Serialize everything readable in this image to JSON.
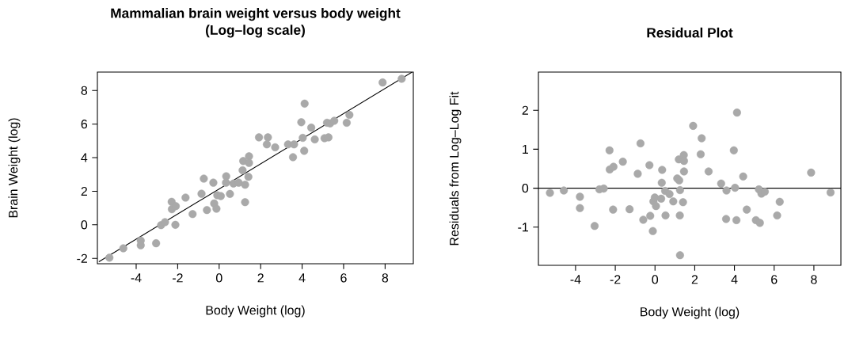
{
  "chart_data": [
    {
      "type": "scatter",
      "title": "Mammalian brain weight versus body weight",
      "subtitle": "(Log–log scale)",
      "xlabel": "Body Weight (log)",
      "ylabel": "Brain Weight (log)",
      "xlim": [
        -5.87,
        9.36
      ],
      "ylim": [
        -2.32,
        9.1
      ],
      "xticks": [
        -4,
        -2,
        0,
        2,
        4,
        6,
        8
      ],
      "yticks": [
        -2,
        0,
        2,
        4,
        6,
        8
      ],
      "series": [
        {
          "color": "#a9a9a9",
          "marker": "circle",
          "x": [
            -5.29,
            -4.62,
            -3.78,
            -3.78,
            -3.04,
            -2.8,
            -2.61,
            -2.11,
            -2.29,
            -2.28,
            -2.09,
            -1.62,
            -1.28,
            -0.85,
            -0.74,
            -0.59,
            -0.28,
            -0.24,
            -0.13,
            -0.09,
            0.08,
            0.34,
            0.33,
            0.52,
            0.69,
            0.94,
            1.13,
            1.16,
            1.25,
            1.25,
            1.41,
            1.44,
            1.44,
            1.92,
            2.35,
            2.3,
            2.7,
            3.32,
            3.61,
            3.56,
            3.96,
            4.03,
            4.12,
            4.1,
            4.44,
            4.61,
            5.08,
            5.27,
            5.2,
            5.35,
            5.55,
            6.15,
            6.28,
            7.88,
            8.8
          ],
          "values": [
            -1.96,
            -1.4,
            -0.94,
            -1.22,
            -1.1,
            -0.02,
            0.16,
            0.0,
            1.37,
            0.93,
            1.11,
            1.62,
            0.64,
            1.85,
            2.75,
            0.88,
            2.51,
            1.27,
            0.96,
            1.76,
            1.71,
            2.89,
            2.51,
            1.84,
            2.46,
            2.51,
            3.25,
            3.8,
            2.39,
            1.35,
            2.86,
            4.08,
            3.69,
            5.21,
            5.21,
            4.79,
            4.62,
            4.79,
            4.79,
            4.03,
            6.11,
            5.18,
            7.22,
            4.41,
            5.79,
            5.09,
            5.16,
            5.21,
            6.08,
            6.04,
            6.2,
            6.08,
            6.55,
            8.48,
            8.7
          ]
        },
        {
          "type": "line",
          "color": "#000000",
          "x": [
            -5.8,
            9.3
          ],
          "values": [
            -2.2,
            9.1
          ]
        }
      ]
    },
    {
      "type": "scatter",
      "title": "Residual Plot",
      "xlabel": "Body Weight (log)",
      "ylabel": "Residuals from Log–Log Fit",
      "xlim": [
        -5.87,
        9.36
      ],
      "ylim": [
        -1.98,
        2.98
      ],
      "xticks": [
        -4,
        -2,
        0,
        2,
        4,
        6,
        8
      ],
      "yticks": [
        -1,
        0,
        1,
        2
      ],
      "ref_lines": [
        {
          "axis": "y",
          "value": 0,
          "color": "#000000"
        }
      ],
      "series": [
        {
          "color": "#a9a9a9",
          "marker": "circle",
          "x": [
            -5.29,
            -4.59,
            -3.78,
            -3.78,
            -3.04,
            -2.8,
            -2.58,
            -2.29,
            -2.28,
            -2.09,
            -2.11,
            -1.62,
            -1.28,
            -0.87,
            -0.73,
            -0.59,
            -0.28,
            -0.24,
            -0.11,
            -0.08,
            -0.01,
            0.05,
            0.31,
            0.36,
            0.34,
            0.51,
            0.53,
            0.73,
            0.92,
            1.12,
            1.22,
            1.2,
            1.26,
            1.25,
            1.26,
            1.41,
            1.45,
            1.46,
            1.46,
            1.92,
            2.3,
            2.35,
            2.7,
            3.33,
            3.6,
            3.58,
            3.97,
            4.03,
            4.1,
            4.13,
            4.44,
            4.62,
            5.08,
            5.23,
            5.28,
            5.36,
            5.53,
            6.15,
            6.28,
            7.86,
            8.84
          ],
          "values": [
            -0.12,
            -0.06,
            -0.22,
            -0.51,
            -0.97,
            -0.03,
            -0.01,
            0.97,
            0.48,
            0.55,
            -0.55,
            0.68,
            -0.54,
            0.37,
            1.15,
            -0.81,
            0.59,
            -0.71,
            -1.1,
            -0.34,
            -0.24,
            -0.46,
            -0.27,
            0.47,
            0.14,
            -0.07,
            -0.7,
            -0.15,
            -0.34,
            0.25,
            0.2,
            0.74,
            -0.05,
            -0.7,
            -1.72,
            -0.36,
            0.85,
            0.7,
            0.43,
            1.6,
            0.87,
            1.28,
            0.43,
            0.12,
            -0.06,
            -0.79,
            0.97,
            0.01,
            -0.82,
            1.94,
            0.3,
            -0.55,
            -0.82,
            -0.03,
            -0.89,
            -0.14,
            -0.09,
            -0.7,
            -0.35,
            0.4,
            -0.11
          ]
        }
      ]
    }
  ]
}
